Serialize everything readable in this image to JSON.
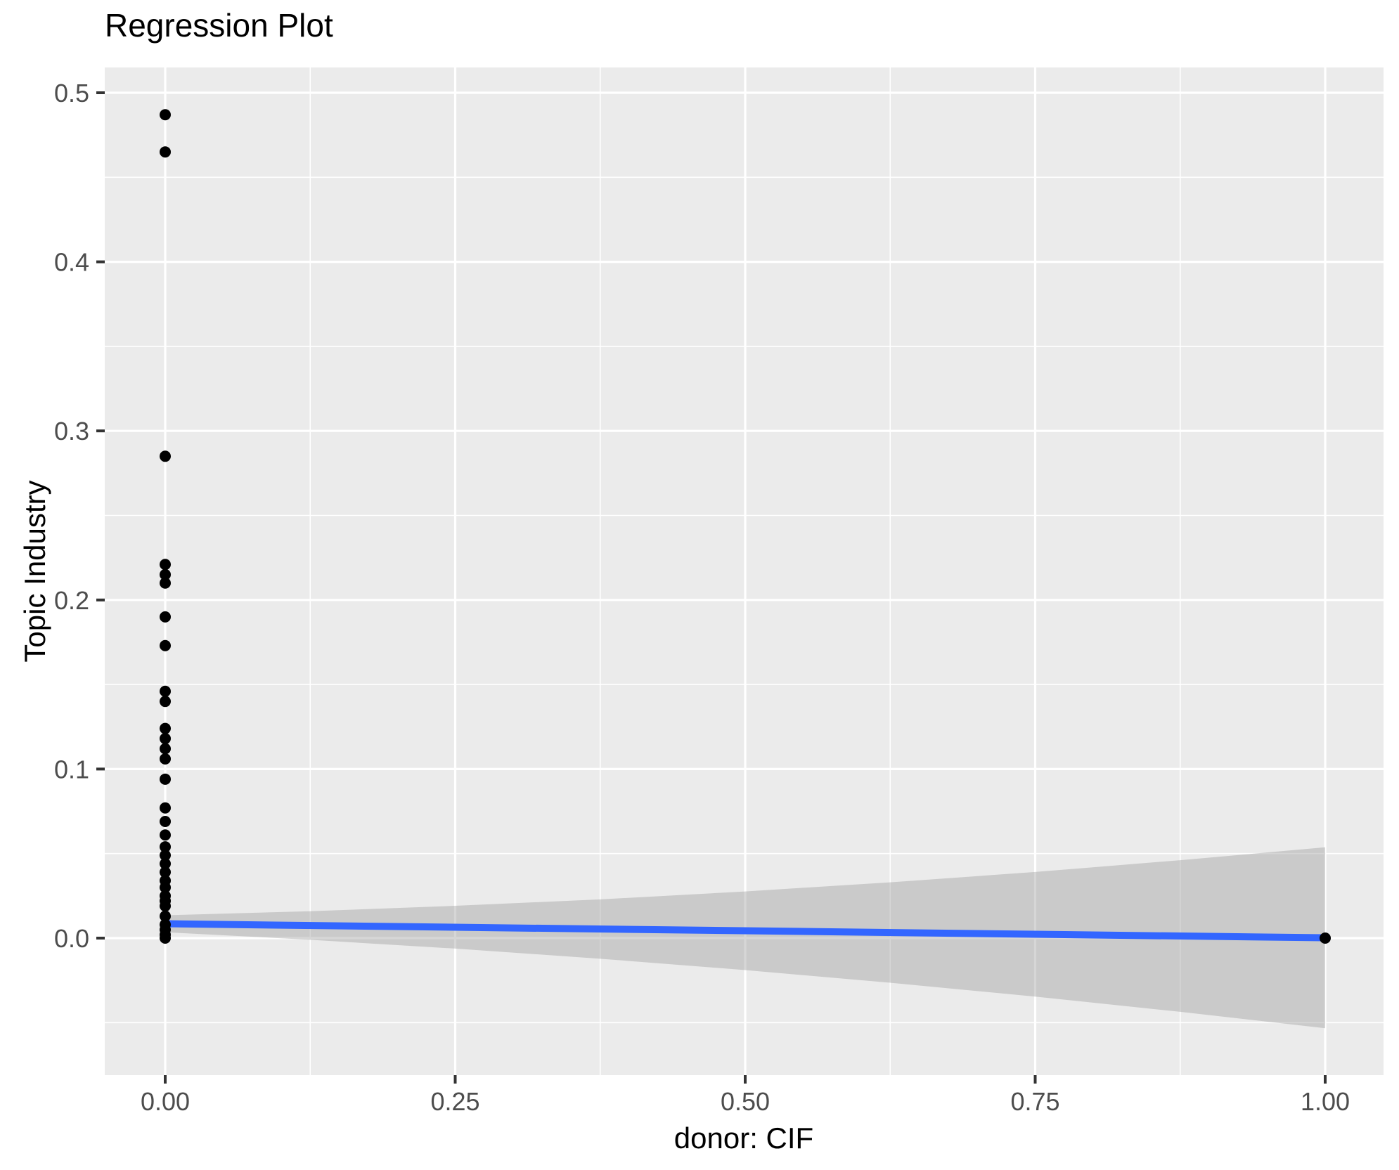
{
  "title": "Regression Plot",
  "chart_data": {
    "type": "scatter",
    "title": "Regression Plot",
    "xlabel": "donor: CIF",
    "ylabel": "Topic Industry",
    "xlim": [
      -0.05,
      1.05
    ],
    "ylim": [
      -0.081,
      0.515
    ],
    "x_ticks": [
      0.0,
      0.25,
      0.5,
      0.75,
      1.0
    ],
    "x_tick_labels": [
      "0.00",
      "0.25",
      "0.50",
      "0.75",
      "1.00"
    ],
    "y_ticks": [
      0.0,
      0.1,
      0.2,
      0.3,
      0.4,
      0.5
    ],
    "y_tick_labels": [
      "0.0",
      "0.1",
      "0.2",
      "0.3",
      "0.4",
      "0.5"
    ],
    "x_minor_ticks": [
      0.125,
      0.375,
      0.625,
      0.875
    ],
    "y_minor_ticks": [
      -0.05,
      0.05,
      0.15,
      0.25,
      0.35,
      0.45
    ],
    "grid": true,
    "legend": false,
    "theme": "ggplot-gray-panel",
    "points": [
      {
        "x": 0,
        "y": 0.487
      },
      {
        "x": 0,
        "y": 0.465
      },
      {
        "x": 0,
        "y": 0.285
      },
      {
        "x": 0,
        "y": 0.221
      },
      {
        "x": 0,
        "y": 0.215
      },
      {
        "x": 0,
        "y": 0.21
      },
      {
        "x": 0,
        "y": 0.19
      },
      {
        "x": 0,
        "y": 0.173
      },
      {
        "x": 0,
        "y": 0.146
      },
      {
        "x": 0,
        "y": 0.14
      },
      {
        "x": 0,
        "y": 0.124
      },
      {
        "x": 0,
        "y": 0.118
      },
      {
        "x": 0,
        "y": 0.112
      },
      {
        "x": 0,
        "y": 0.106
      },
      {
        "x": 0,
        "y": 0.094
      },
      {
        "x": 0,
        "y": 0.077
      },
      {
        "x": 0,
        "y": 0.069
      },
      {
        "x": 0,
        "y": 0.061
      },
      {
        "x": 0,
        "y": 0.054
      },
      {
        "x": 0,
        "y": 0.049
      },
      {
        "x": 0,
        "y": 0.044
      },
      {
        "x": 0,
        "y": 0.039
      },
      {
        "x": 0,
        "y": 0.034
      },
      {
        "x": 0,
        "y": 0.03
      },
      {
        "x": 0,
        "y": 0.025
      },
      {
        "x": 0,
        "y": 0.022
      },
      {
        "x": 0,
        "y": 0.019
      },
      {
        "x": 0,
        "y": 0.013
      },
      {
        "x": 0,
        "y": 0.008
      },
      {
        "x": 0,
        "y": 0.005
      },
      {
        "x": 0,
        "y": 0.002
      },
      {
        "x": 0,
        "y": 0.0
      },
      {
        "x": 1,
        "y": 0.0
      }
    ],
    "regression_line": {
      "x": [
        0.0,
        1.0
      ],
      "y": [
        0.0085,
        0.0002
      ]
    },
    "confidence_band": [
      {
        "x": 0.0,
        "lower": 0.0035,
        "upper": 0.0135
      },
      {
        "x": 0.125,
        "lower": -0.001,
        "upper": 0.0159
      },
      {
        "x": 0.25,
        "lower": -0.0062,
        "upper": 0.0191
      },
      {
        "x": 0.375,
        "lower": -0.0122,
        "upper": 0.0229
      },
      {
        "x": 0.5,
        "lower": -0.0189,
        "upper": 0.0276
      },
      {
        "x": 0.625,
        "lower": -0.0264,
        "upper": 0.033
      },
      {
        "x": 0.75,
        "lower": -0.0346,
        "upper": 0.0391
      },
      {
        "x": 0.875,
        "lower": -0.0436,
        "upper": 0.0461
      },
      {
        "x": 1.0,
        "lower": -0.0533,
        "upper": 0.0537
      }
    ],
    "colors": {
      "panel_background": "#EBEBEB",
      "grid_line": "#FFFFFF",
      "point": "#000000",
      "line": "#3366FF",
      "ribbon": "#999999",
      "ribbon_opacity": 0.4,
      "tick_text": "#4D4D4D",
      "tick_mark": "#333333",
      "title_text": "#000000"
    }
  }
}
